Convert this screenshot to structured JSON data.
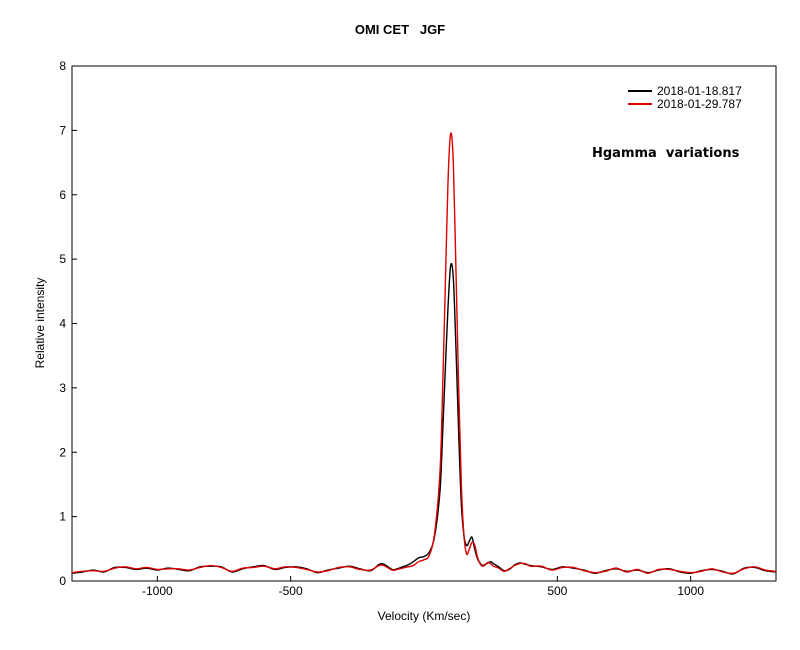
{
  "chart_data": {
    "type": "line",
    "title": "OMI CET   JGF",
    "xlabel": "Velocity (Km/sec)",
    "ylabel": "Relative intensity",
    "annotation": "Hgamma  variations",
    "xlim": [
      -1320,
      1320
    ],
    "ylim": [
      0,
      8
    ],
    "xticks": [
      -1000,
      -500,
      500,
      1000
    ],
    "yticks": [
      0,
      1,
      2,
      3,
      4,
      5,
      6,
      7,
      8
    ],
    "grid": false,
    "legend_position": "top-right",
    "series": [
      {
        "name": "2018-01-18.817",
        "color": "#000000",
        "x": [
          -1320,
          -1280,
          -1240,
          -1200,
          -1160,
          -1120,
          -1080,
          -1040,
          -1000,
          -960,
          -920,
          -880,
          -840,
          -800,
          -760,
          -720,
          -680,
          -640,
          -600,
          -560,
          -520,
          -480,
          -440,
          -400,
          -360,
          -320,
          -280,
          -240,
          -200,
          -160,
          -120,
          -100,
          -80,
          -60,
          -40,
          -20,
          0,
          20,
          40,
          60,
          70,
          80,
          90,
          100,
          110,
          120,
          130,
          140,
          150,
          160,
          170,
          180,
          190,
          200,
          210,
          220,
          230,
          240,
          250,
          260,
          280,
          300,
          320,
          340,
          360,
          380,
          400,
          440,
          480,
          520,
          560,
          600,
          640,
          680,
          720,
          760,
          800,
          840,
          880,
          920,
          960,
          1000,
          1040,
          1080,
          1120,
          1160,
          1200,
          1240,
          1280,
          1320
        ],
        "y": [
          0.12,
          0.14,
          0.17,
          0.14,
          0.21,
          0.21,
          0.18,
          0.2,
          0.17,
          0.2,
          0.18,
          0.16,
          0.22,
          0.23,
          0.22,
          0.14,
          0.19,
          0.22,
          0.24,
          0.18,
          0.21,
          0.22,
          0.19,
          0.13,
          0.17,
          0.2,
          0.23,
          0.19,
          0.16,
          0.27,
          0.18,
          0.19,
          0.22,
          0.25,
          0.3,
          0.36,
          0.38,
          0.45,
          0.7,
          1.4,
          2.3,
          3.3,
          4.25,
          4.9,
          4.7,
          3.6,
          2.3,
          1.2,
          0.7,
          0.55,
          0.62,
          0.68,
          0.5,
          0.35,
          0.28,
          0.24,
          0.26,
          0.28,
          0.3,
          0.27,
          0.22,
          0.16,
          0.18,
          0.25,
          0.28,
          0.26,
          0.24,
          0.22,
          0.18,
          0.22,
          0.2,
          0.17,
          0.12,
          0.16,
          0.19,
          0.15,
          0.17,
          0.13,
          0.17,
          0.19,
          0.14,
          0.12,
          0.16,
          0.18,
          0.15,
          0.11,
          0.2,
          0.21,
          0.16,
          0.14
        ]
      },
      {
        "name": "2018-01-29.787",
        "color": "#dd0000",
        "x": [
          -1320,
          -1280,
          -1240,
          -1200,
          -1160,
          -1120,
          -1080,
          -1040,
          -1000,
          -960,
          -920,
          -880,
          -840,
          -800,
          -760,
          -720,
          -680,
          -640,
          -600,
          -560,
          -520,
          -480,
          -440,
          -400,
          -360,
          -320,
          -280,
          -240,
          -200,
          -160,
          -120,
          -100,
          -80,
          -60,
          -40,
          -20,
          0,
          20,
          40,
          60,
          70,
          80,
          90,
          100,
          110,
          120,
          130,
          140,
          150,
          160,
          170,
          180,
          190,
          200,
          210,
          220,
          230,
          240,
          250,
          260,
          280,
          300,
          320,
          340,
          360,
          380,
          400,
          440,
          480,
          520,
          560,
          600,
          640,
          680,
          720,
          760,
          800,
          840,
          880,
          920,
          960,
          1000,
          1040,
          1080,
          1120,
          1160,
          1200,
          1240,
          1280,
          1320
        ],
        "y": [
          0.13,
          0.15,
          0.16,
          0.15,
          0.2,
          0.22,
          0.19,
          0.21,
          0.18,
          0.19,
          0.19,
          0.17,
          0.21,
          0.24,
          0.21,
          0.15,
          0.2,
          0.21,
          0.23,
          0.19,
          0.22,
          0.21,
          0.18,
          0.14,
          0.16,
          0.21,
          0.22,
          0.18,
          0.17,
          0.25,
          0.17,
          0.18,
          0.2,
          0.22,
          0.24,
          0.3,
          0.33,
          0.4,
          0.75,
          1.7,
          3.0,
          4.6,
          6.2,
          6.95,
          6.5,
          4.8,
          3.0,
          1.5,
          0.7,
          0.42,
          0.5,
          0.6,
          0.56,
          0.38,
          0.27,
          0.23,
          0.25,
          0.29,
          0.27,
          0.23,
          0.2,
          0.15,
          0.19,
          0.24,
          0.27,
          0.27,
          0.23,
          0.23,
          0.17,
          0.21,
          0.21,
          0.16,
          0.13,
          0.15,
          0.2,
          0.14,
          0.18,
          0.12,
          0.18,
          0.18,
          0.15,
          0.13,
          0.15,
          0.19,
          0.14,
          0.12,
          0.19,
          0.22,
          0.17,
          0.15
        ]
      }
    ]
  }
}
